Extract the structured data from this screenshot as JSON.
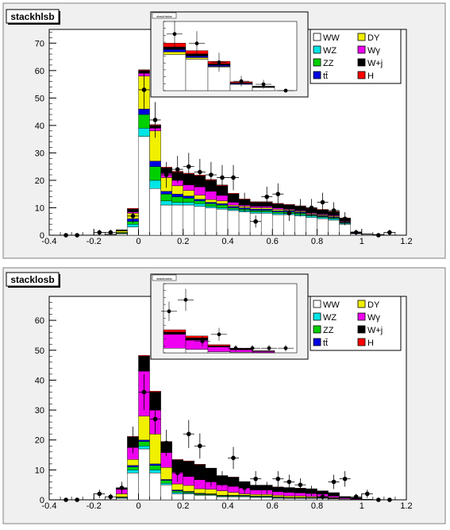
{
  "colors": {
    "WW": "#ffffff",
    "WZ": "#00e5e5",
    "ZZ": "#00d000",
    "tt": "#0000e0",
    "DY": "#f0f000",
    "Wg": "#f000f0",
    "Wj": "#000000",
    "H": "#ff0000",
    "pad_bg": "#f0f0f0",
    "frame_border": "#808080"
  },
  "chart_data": [
    {
      "type": "bar",
      "title": "stackhlsb",
      "xlim": [
        -0.4,
        1.2
      ],
      "ylim": [
        0,
        75
      ],
      "xticks": [
        "-0.4",
        "-0.2",
        "0",
        "0.2",
        "0.4",
        "0.6",
        "0.8",
        "1",
        "1.2"
      ],
      "yticks": [
        "0",
        "10",
        "20",
        "30",
        "40",
        "50",
        "60",
        "70"
      ],
      "bin_edges": [
        -0.35,
        -0.3,
        -0.25,
        -0.2,
        -0.15,
        -0.1,
        -0.05,
        0,
        0.05,
        0.1,
        0.15,
        0.2,
        0.25,
        0.3,
        0.35,
        0.4,
        0.45,
        0.5,
        0.55,
        0.6,
        0.65,
        0.7,
        0.75,
        0.8,
        0.85,
        0.9,
        0.95,
        1.0,
        1.05,
        1.1,
        1.15
      ],
      "series": [
        {
          "name": "WW",
          "values": [
            0,
            0,
            0,
            0,
            0.2,
            0.5,
            3,
            36,
            17,
            11,
            11,
            11,
            10.5,
            10,
            9.5,
            9,
            8.5,
            8,
            8,
            7.5,
            7.5,
            7,
            6.5,
            6,
            5.5,
            4,
            0.5,
            0.3,
            0.2,
            0
          ]
        },
        {
          "name": "WZ",
          "values": [
            0,
            0,
            0,
            0,
            0,
            0.2,
            1,
            3,
            3,
            1.5,
            1,
            1,
            1,
            0.5,
            0.5,
            0.5,
            0.5,
            0.5,
            0.5,
            0.5,
            0.5,
            0.5,
            0.5,
            0.5,
            0.5,
            0.3,
            0,
            0,
            0,
            0
          ]
        },
        {
          "name": "ZZ",
          "values": [
            0,
            0,
            0,
            0,
            0,
            0.2,
            1,
            5,
            5,
            2.5,
            2,
            1.5,
            1,
            1,
            1,
            0.5,
            0.5,
            0.5,
            0.5,
            0.5,
            0.5,
            0.5,
            0.3,
            0.3,
            0.3,
            0.2,
            0,
            0,
            0,
            0
          ]
        },
        {
          "name": "tt",
          "values": [
            0,
            0,
            0,
            0,
            0,
            0.1,
            1,
            2,
            2,
            1,
            1,
            0.8,
            0.6,
            0.5,
            0.5,
            0.5,
            0.5,
            0.5,
            0.5,
            0.4,
            0.4,
            0.4,
            0.3,
            0.3,
            0.3,
            0.2,
            0.2,
            0,
            0,
            0
          ]
        },
        {
          "name": "DY",
          "values": [
            0,
            0,
            0,
            0,
            0,
            0.5,
            2,
            12,
            11,
            5,
            3,
            2,
            1.5,
            1,
            1,
            0.5,
            0.5,
            0.5,
            0.5,
            0.5,
            0.3,
            0.3,
            0.3,
            0.3,
            0.3,
            0.2,
            0,
            0,
            0,
            0
          ]
        },
        {
          "name": "Wγ",
          "values": [
            0,
            0,
            0,
            0,
            0,
            0,
            0.5,
            1,
            1,
            1.5,
            2,
            2,
            3,
            3,
            2,
            1,
            0.5,
            0.5,
            0.5,
            0.5,
            0.3,
            0.3,
            0.3,
            0.3,
            0.3,
            0.2,
            0,
            0,
            0,
            0
          ]
        },
        {
          "name": "W+j",
          "values": [
            0,
            0,
            0,
            0,
            0.2,
            0.5,
            1,
            1,
            1,
            2,
            3,
            4,
            4,
            4,
            3.5,
            3,
            2,
            1.5,
            1.5,
            1.5,
            1.5,
            1.5,
            1.5,
            1.5,
            1.3,
            1,
            0.5,
            0.2,
            0.1,
            0
          ]
        },
        {
          "name": "H",
          "values": [
            0,
            0,
            0,
            0,
            0,
            0,
            0.3,
            0.3,
            0.3,
            0.3,
            0.3,
            0.3,
            0.3,
            0.3,
            0.3,
            0.3,
            0.2,
            0.2,
            0.2,
            0.2,
            0.2,
            0.2,
            0.2,
            0.2,
            0.2,
            0.2,
            0,
            0,
            0,
            0
          ]
        }
      ],
      "legend": [
        "WW",
        "DY",
        "WZ",
        "Wγ",
        "ZZ",
        "W+j",
        "tt̄",
        "H"
      ],
      "data_points": {
        "x": [
          -0.325,
          -0.275,
          -0.175,
          -0.125,
          -0.025,
          0.025,
          0.075,
          0.125,
          0.175,
          0.225,
          0.275,
          0.325,
          0.375,
          0.425,
          0.475,
          0.525,
          0.575,
          0.625,
          0.675,
          0.725,
          0.775,
          0.825,
          0.875,
          0.925,
          0.975,
          1.075,
          1.125
        ],
        "y": [
          0,
          0,
          1,
          1,
          7,
          53,
          42,
          22,
          24,
          25,
          23,
          22,
          21,
          21,
          12,
          5,
          14,
          15,
          8,
          10,
          10,
          12,
          9,
          6,
          1,
          0,
          1
        ],
        "err": [
          0,
          0,
          1,
          1,
          2.6,
          7.3,
          6.5,
          4.7,
          4.9,
          5,
          4.8,
          4.7,
          4.6,
          4.6,
          3.5,
          2.2,
          3.7,
          3.9,
          2.8,
          3.2,
          3.2,
          3.5,
          3,
          2.4,
          1,
          0,
          1
        ]
      },
      "inset": {
        "title": "stackhlsbw",
        "edges": [
          0,
          0.2,
          0.4,
          0.6,
          0.8,
          1.0,
          1.2
        ],
        "series_totals": [
          {
            "name": "WW",
            "values": [
              11.5,
              10,
              7.5,
              2,
              1,
              0
            ]
          },
          {
            "name": "DY",
            "values": [
              0.8,
              0.5,
              0.2,
              0,
              0,
              0
            ]
          },
          {
            "name": "tt",
            "values": [
              0.8,
              0.5,
              0.4,
              0.2,
              0.1,
              0
            ]
          },
          {
            "name": "W+j",
            "values": [
              0.8,
              0.7,
              0.4,
              0.3,
              0.2,
              0
            ]
          },
          {
            "name": "H",
            "values": [
              1.2,
              1.0,
              0.8,
              0.3,
              0.1,
              0
            ]
          }
        ],
        "data": {
          "x": [
            0.1,
            0.3,
            0.5,
            0.7,
            0.9,
            1.1
          ],
          "y": [
            18,
            15,
            9,
            3,
            2,
            0
          ],
          "err": [
            4.2,
            3.9,
            3,
            1.7,
            1.4,
            0
          ]
        },
        "ylim": [
          0,
          22
        ]
      }
    },
    {
      "type": "bar",
      "title": "stacklosb",
      "xlim": [
        -0.4,
        1.2
      ],
      "ylim": [
        0,
        68
      ],
      "xticks": [
        "-0.4",
        "-0.2",
        "0",
        "0.2",
        "0.4",
        "0.6",
        "0.8",
        "1",
        "1.2"
      ],
      "yticks": [
        "0",
        "10",
        "20",
        "30",
        "40",
        "50",
        "60"
      ],
      "bin_edges": [
        -0.35,
        -0.3,
        -0.25,
        -0.2,
        -0.15,
        -0.1,
        -0.05,
        0,
        0.05,
        0.1,
        0.15,
        0.2,
        0.25,
        0.3,
        0.35,
        0.4,
        0.45,
        0.5,
        0.55,
        0.6,
        0.65,
        0.7,
        0.75,
        0.8,
        0.85,
        0.9,
        0.95,
        1.0,
        1.05,
        1.1,
        1.15
      ],
      "series": [
        {
          "name": "WW",
          "values": [
            0,
            0,
            0,
            0,
            0,
            0.5,
            9,
            17,
            9,
            5,
            2,
            2,
            1.5,
            1.5,
            1,
            1,
            1,
            0.8,
            0.8,
            0.5,
            0.5,
            0.5,
            0.5,
            0.5,
            0.3,
            0.2,
            0,
            0,
            0,
            0
          ]
        },
        {
          "name": "WZ",
          "values": [
            0,
            0,
            0,
            0,
            0,
            0.2,
            1,
            1,
            1,
            0.5,
            0.5,
            0.3,
            0.2,
            0.2,
            0.2,
            0.2,
            0.2,
            0.2,
            0.2,
            0.2,
            0.1,
            0.1,
            0.1,
            0.1,
            0.1,
            0,
            0,
            0,
            0,
            0
          ]
        },
        {
          "name": "ZZ",
          "values": [
            0,
            0,
            0,
            0,
            0,
            0.2,
            1,
            1.5,
            1.5,
            1,
            0.5,
            0.3,
            0.3,
            0.2,
            0.2,
            0.2,
            0.2,
            0.2,
            0.2,
            0.2,
            0.1,
            0.1,
            0.1,
            0.1,
            0.1,
            0,
            0,
            0,
            0,
            0
          ]
        },
        {
          "name": "tt",
          "values": [
            0,
            0,
            0,
            0,
            0,
            0.1,
            0.5,
            0.5,
            0.5,
            0.3,
            0.3,
            0.2,
            0.2,
            0.1,
            0.1,
            0.1,
            0.1,
            0.1,
            0.1,
            0.1,
            0.1,
            0.1,
            0.1,
            0.1,
            0.1,
            0,
            0,
            0,
            0,
            0
          ]
        },
        {
          "name": "DY",
          "values": [
            0,
            0,
            0,
            0,
            0,
            1,
            2,
            8,
            10,
            4,
            2,
            2,
            1.5,
            1.5,
            1.5,
            1,
            0.5,
            0.5,
            0.5,
            0.5,
            0.5,
            0.5,
            0.3,
            0.3,
            0.2,
            0.1,
            0,
            0,
            0,
            0
          ]
        },
        {
          "name": "Wγ",
          "values": [
            0,
            0,
            0,
            0,
            0,
            1.5,
            4,
            15,
            8,
            5,
            4,
            3,
            3,
            2.5,
            2,
            2,
            2,
            1.5,
            1.5,
            1.2,
            1.2,
            1,
            1,
            0.8,
            0.5,
            0.3,
            0.2,
            0,
            0,
            0
          ]
        },
        {
          "name": "W+j",
          "values": [
            0,
            0,
            0,
            0,
            0,
            0.5,
            3.5,
            5,
            6,
            3.5,
            4,
            5,
            5,
            4.5,
            3,
            3,
            2,
            1.5,
            1.5,
            1.5,
            1.5,
            1.5,
            1.5,
            1,
            1,
            0.5,
            0.5,
            0.2,
            0.1,
            0
          ]
        },
        {
          "name": "H",
          "values": [
            0,
            0,
            0,
            0,
            0,
            0,
            0.2,
            0.3,
            0.3,
            0.2,
            0.2,
            0.2,
            0.2,
            0.1,
            0.1,
            0.1,
            0.1,
            0.1,
            0.1,
            0.1,
            0.1,
            0.1,
            0.1,
            0.1,
            0.1,
            0,
            0,
            0,
            0,
            0
          ]
        }
      ],
      "legend": [
        "WW",
        "DY",
        "WZ",
        "Wγ",
        "ZZ",
        "W+j",
        "tt̄",
        "H"
      ],
      "data_points": {
        "x": [
          -0.325,
          -0.275,
          -0.175,
          -0.125,
          -0.075,
          -0.025,
          0.025,
          0.075,
          0.125,
          0.175,
          0.225,
          0.275,
          0.325,
          0.375,
          0.425,
          0.475,
          0.525,
          0.575,
          0.625,
          0.675,
          0.725,
          0.775,
          0.825,
          0.875,
          0.925,
          0.975,
          1.025,
          1.075,
          1.125
        ],
        "y": [
          0,
          0,
          2,
          1,
          4,
          20,
          36,
          27,
          19,
          9,
          22,
          18,
          7,
          7,
          14,
          4,
          7,
          4,
          7,
          6,
          5,
          3,
          1,
          6,
          7,
          1,
          2,
          0,
          0
        ],
        "err": [
          0,
          0,
          1.4,
          1,
          2,
          4.5,
          6,
          5.2,
          4.4,
          3,
          4.7,
          4.2,
          2.6,
          2.6,
          3.7,
          2,
          2.6,
          2,
          2.6,
          2.4,
          2.2,
          1.7,
          1,
          2.4,
          2.6,
          1,
          1.4,
          0,
          0
        ]
      },
      "inset": {
        "title": "stacklosbw",
        "edges": [
          0,
          0.2,
          0.4,
          0.6,
          0.8,
          1.0,
          1.2
        ],
        "series_totals": [
          {
            "name": "WW",
            "values": [
              2,
              1.5,
              0.5,
              0.3,
              0.1,
              0
            ]
          },
          {
            "name": "Wγ",
            "values": [
              6,
              4,
              2,
              1,
              0.5,
              0
            ]
          },
          {
            "name": "W+j",
            "values": [
              1,
              1,
              0.5,
              0.5,
              0.2,
              0
            ]
          },
          {
            "name": "H",
            "values": [
              1,
              0.8,
              0.5,
              0.2,
              0.1,
              0
            ]
          }
        ],
        "data": {
          "x": [
            0.05,
            0.2,
            0.35,
            0.5,
            0.65,
            0.8,
            0.95,
            1.1
          ],
          "y": [
            18,
            23,
            5,
            8,
            2,
            2,
            2,
            2
          ],
          "err": [
            4.2,
            4.8,
            2.2,
            2.8,
            1.4,
            1.4,
            1.4,
            1.4
          ]
        },
        "ylim": [
          0,
          30
        ]
      }
    }
  ]
}
